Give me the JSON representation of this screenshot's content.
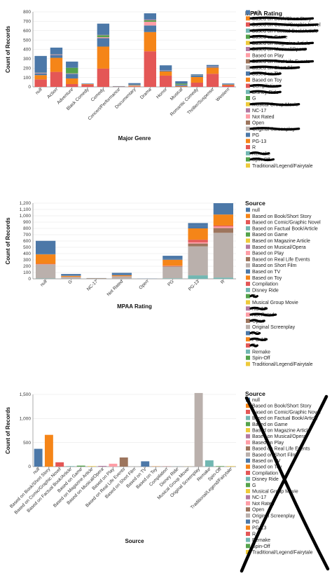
{
  "colors": {
    "null": "#4c78a8",
    "Based on Book/Short Story": "#f58518",
    "Based on Comic/Graphic Novel": "#e45756",
    "Based on Factual Book/Article": "#72b7b2",
    "Based on Game": "#54a24b",
    "Based on Magazine Article": "#eeca3b",
    "Based on Musical/Opera": "#b279a2",
    "Based on Play": "#ff9da6",
    "Based on Real Life Events": "#9d755d",
    "Based on Short Film": "#bab0ac",
    "Based on TV": "#4c78a8",
    "Based on Toy": "#f58518",
    "Compilation": "#e45756",
    "Disney Ride": "#72b7b2",
    "G": "#54a24b",
    "Musical Group Movie": "#eeca3b",
    "NC-17": "#b279a2",
    "Not Rated": "#ff9da6",
    "Open": "#9d755d",
    "Original Screenplay": "#bab0ac",
    "PG": "#4c78a8",
    "PG-13": "#f58518",
    "R": "#e45756",
    "Remake": "#72b7b2",
    "Spin-Off": "#54a24b",
    "Traditional/Legend/Fairytale": "#eeca3b",
    "scribble": "#000000"
  },
  "chart_data": [
    {
      "type": "bar",
      "stacked": true,
      "xlabel": "Major Genre",
      "ylabel": "Count of Records",
      "ylim": [
        0,
        800
      ],
      "yticks": [
        0,
        100,
        200,
        300,
        400,
        500,
        600,
        700,
        800
      ],
      "grid": true,
      "legend_title": "MPAA Rating",
      "legend_position": "right",
      "legend_items": [
        "null",
        "Based on Book/Short Story",
        "Based on Comic/Graphic Novel",
        "Based on Factual Book/Article",
        "Based on Game",
        "Based on Magazine Article",
        "Based on Musical/Opera",
        "Based on Play",
        "Based on Real Life Events",
        "Based on Short Film",
        "Based on TV",
        "Based on Toy",
        "Compilation",
        "Disney Ride",
        "G",
        "Musical Group Movie",
        "NC-17",
        "Not Rated",
        "Open",
        "Original Screenplay",
        "PG",
        "PG-13",
        "R",
        "Remake",
        "Spin-Off",
        "Traditional/Legend/Fairytale"
      ],
      "legend_scribbled": [
        "Based on Book/Short Story",
        "Based on Comic/Graphic Novel",
        "Based on Factual Book/Article",
        "Based on Game",
        "Based on Magazine Article",
        "Based on Musical/Opera",
        "Based on Real Life Events",
        "Based on Short Film",
        "Based on TV",
        "Compilation",
        "Disney Ride",
        "Musical Group Movie",
        "Original Screenplay",
        "Remake",
        "Spin-Off"
      ],
      "categories": [
        "null",
        "Action",
        "Adventure",
        "Black Comedy",
        "Comedy",
        "Concert/Performance",
        "Documentary",
        "Drama",
        "Horror",
        "Musical",
        "Romantic Comedy",
        "Thriller/Suspense",
        "Western"
      ],
      "series": [
        {
          "name": "R",
          "values": [
            80,
            160,
            30,
            25,
            195,
            0,
            5,
            380,
            120,
            3,
            45,
            140,
            15
          ]
        },
        {
          "name": "PG-13",
          "values": [
            45,
            150,
            60,
            5,
            235,
            2,
            5,
            205,
            45,
            5,
            60,
            65,
            8
          ]
        },
        {
          "name": "PG",
          "values": [
            20,
            30,
            50,
            1,
            90,
            0,
            3,
            70,
            10,
            12,
            15,
            8,
            4
          ]
        },
        {
          "name": "Not Rated",
          "values": [
            5,
            4,
            4,
            0,
            10,
            2,
            6,
            40,
            2,
            3,
            2,
            4,
            1
          ]
        },
        {
          "name": "G",
          "values": [
            2,
            2,
            60,
            0,
            20,
            0,
            4,
            15,
            0,
            12,
            2,
            1,
            0
          ]
        },
        {
          "name": "NC-17",
          "values": [
            0,
            2,
            0,
            0,
            2,
            0,
            0,
            6,
            1,
            0,
            0,
            1,
            0
          ]
        },
        {
          "name": "Open",
          "values": [
            0,
            0,
            0,
            0,
            3,
            0,
            0,
            3,
            0,
            0,
            0,
            0,
            0
          ]
        },
        {
          "name": "null",
          "values": [
            178,
            71,
            66,
            5,
            120,
            4,
            17,
            66,
            52,
            25,
            10,
            15,
            8
          ]
        }
      ]
    },
    {
      "type": "bar",
      "stacked": true,
      "xlabel": "MPAA Rating",
      "ylabel": "Count of Records",
      "ylim": [
        0,
        1200
      ],
      "yticks": [
        0,
        100,
        200,
        300,
        400,
        500,
        600,
        700,
        800,
        900,
        1000,
        1100,
        1200
      ],
      "grid": true,
      "legend_title": "Source",
      "legend_position": "right",
      "legend_items": [
        "null",
        "Based on Book/Short Story",
        "Based on Comic/Graphic Novel",
        "Based on Factual Book/Article",
        "Based on Game",
        "Based on Magazine Article",
        "Based on Musical/Opera",
        "Based on Play",
        "Based on Real Life Events",
        "Based on Short Film",
        "Based on TV",
        "Based on Toy",
        "Compilation",
        "Disney Ride",
        "G",
        "Musical Group Movie",
        "NC-17",
        "Not Rated",
        "Open",
        "Original Screenplay",
        "PG",
        "PG-13",
        "R",
        "Remake",
        "Spin-Off",
        "Traditional/Legend/Fairytale"
      ],
      "legend_scribbled": [
        "G",
        "NC-17",
        "Not Rated",
        "Open",
        "PG",
        "PG-13",
        "R"
      ],
      "categories": [
        "null",
        "G",
        "NC-17",
        "Not Rated",
        "Open",
        "PG",
        "PG-13",
        "R"
      ],
      "series": [
        {
          "name": "Remake",
          "values": [
            5,
            2,
            0,
            1,
            0,
            8,
            55,
            20
          ]
        },
        {
          "name": "Original Screenplay",
          "values": [
            220,
            25,
            3,
            35,
            1,
            180,
            460,
            710
          ]
        },
        {
          "name": "Based on Real Life Events",
          "values": [
            5,
            3,
            0,
            5,
            0,
            10,
            45,
            75
          ]
        },
        {
          "name": "Based on Play",
          "values": [
            3,
            2,
            0,
            2,
            0,
            5,
            20,
            25
          ]
        },
        {
          "name": "Based on Comic/Graphic Novel",
          "values": [
            5,
            0,
            0,
            0,
            0,
            5,
            40,
            15
          ]
        },
        {
          "name": "Based on Book/Short Story",
          "values": [
            150,
            15,
            4,
            15,
            0,
            95,
            180,
            175
          ]
        },
        {
          "name": "Based on TV",
          "values": [
            10,
            5,
            0,
            2,
            0,
            15,
            40,
            30
          ]
        },
        {
          "name": "null",
          "values": [
            205,
            25,
            5,
            35,
            2,
            48,
            45,
            150
          ]
        }
      ]
    },
    {
      "type": "bar",
      "xlabel": "Source",
      "ylabel": "Count of Records",
      "ylim": [
        0,
        1500
      ],
      "yticks": [
        0,
        500,
        1000,
        1500
      ],
      "grid": true,
      "legend_title": "Source",
      "legend_position": "right",
      "legend_items": [
        "null",
        "Based on Book/Short Story",
        "Based on Comic/Graphic Novel",
        "Based on Factual Book/Article",
        "Based on Game",
        "Based on Magazine Article",
        "Based on Musical/Opera",
        "Based on Play",
        "Based on Real Life Events",
        "Based on Short Film",
        "Based on TV",
        "Based on Toy",
        "Compilation",
        "Disney Ride",
        "G",
        "Musical Group Movie",
        "NC-17",
        "Not Rated",
        "Open",
        "Original Screenplay",
        "PG",
        "PG-13",
        "R",
        "Remake",
        "Spin-Off",
        "Traditional/Legend/Fairytale"
      ],
      "legend_crossed_out": true,
      "categories": [
        "null",
        "Based on Book/Short Story",
        "Based on Comic/Graphic Novel",
        "Based on Factual Book/Article",
        "Based on Game",
        "Based on Magazine Article",
        "Based on Musical/Opera",
        "Based on Play",
        "Based on Real Life Events",
        "Based on Short Film",
        "Based on TV",
        "Based on Toy",
        "Compilation",
        "Disney Ride",
        "Musical Group Movie",
        "Original Screenplay",
        "Remake",
        "Spin-Off",
        "Traditional/Legend/Fairytale"
      ],
      "values": [
        370,
        660,
        90,
        10,
        20,
        10,
        15,
        60,
        190,
        5,
        110,
        5,
        3,
        2,
        2,
        1530,
        130,
        10,
        10
      ]
    }
  ]
}
